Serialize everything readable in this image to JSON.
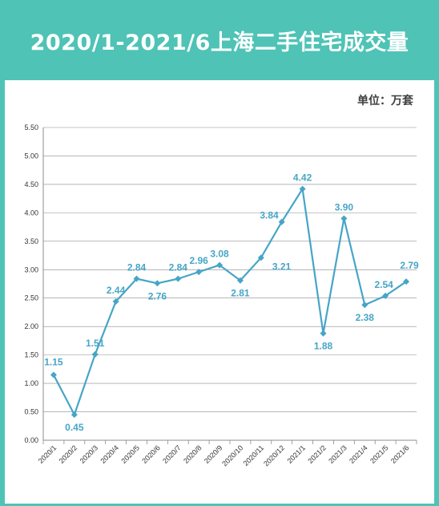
{
  "title": "2020/1-2021/6上海二手住宅成交量",
  "unit_label": "单位：万套",
  "colors": {
    "header_bg": "#4ec3b6",
    "line": "#46a5c7",
    "label": "#46a5c7",
    "grid": "#8c8c8c"
  },
  "chart_data": {
    "type": "line",
    "title": "2020/1-2021/6上海二手住宅成交量",
    "xlabel": "",
    "ylabel": "",
    "ylim": [
      0,
      5.5
    ],
    "yticks": [
      "0.00",
      "0.50",
      "1.00",
      "1.50",
      "2.00",
      "2.50",
      "3.00",
      "3.50",
      "4.00",
      "4.50",
      "5.00",
      "5.50"
    ],
    "grid": true,
    "categories": [
      "2020/1",
      "2020/2",
      "2020/3",
      "2020/4",
      "2020/5",
      "2020/6",
      "2020/7",
      "2020/8",
      "2020/9",
      "2020/10",
      "2020/11",
      "2020/12",
      "2021/1",
      "2021/2",
      "2021/3",
      "2021/4",
      "2021/5",
      "2021/6"
    ],
    "series": [
      {
        "values": [
          1.15,
          0.45,
          1.51,
          2.44,
          2.84,
          2.76,
          2.84,
          2.96,
          3.08,
          2.81,
          3.21,
          3.84,
          4.42,
          1.88,
          3.9,
          2.38,
          2.54,
          2.79
        ]
      }
    ],
    "data_labels": [
      "1.15",
      "0.45",
      "1.51",
      "2.44",
      "2.84",
      "2.76",
      "2.84",
      "2.96",
      "3.08",
      "2.81",
      "3.21",
      "3.84",
      "4.42",
      "1.88",
      "3.90",
      "2.38",
      "2.54",
      "2.79"
    ]
  }
}
